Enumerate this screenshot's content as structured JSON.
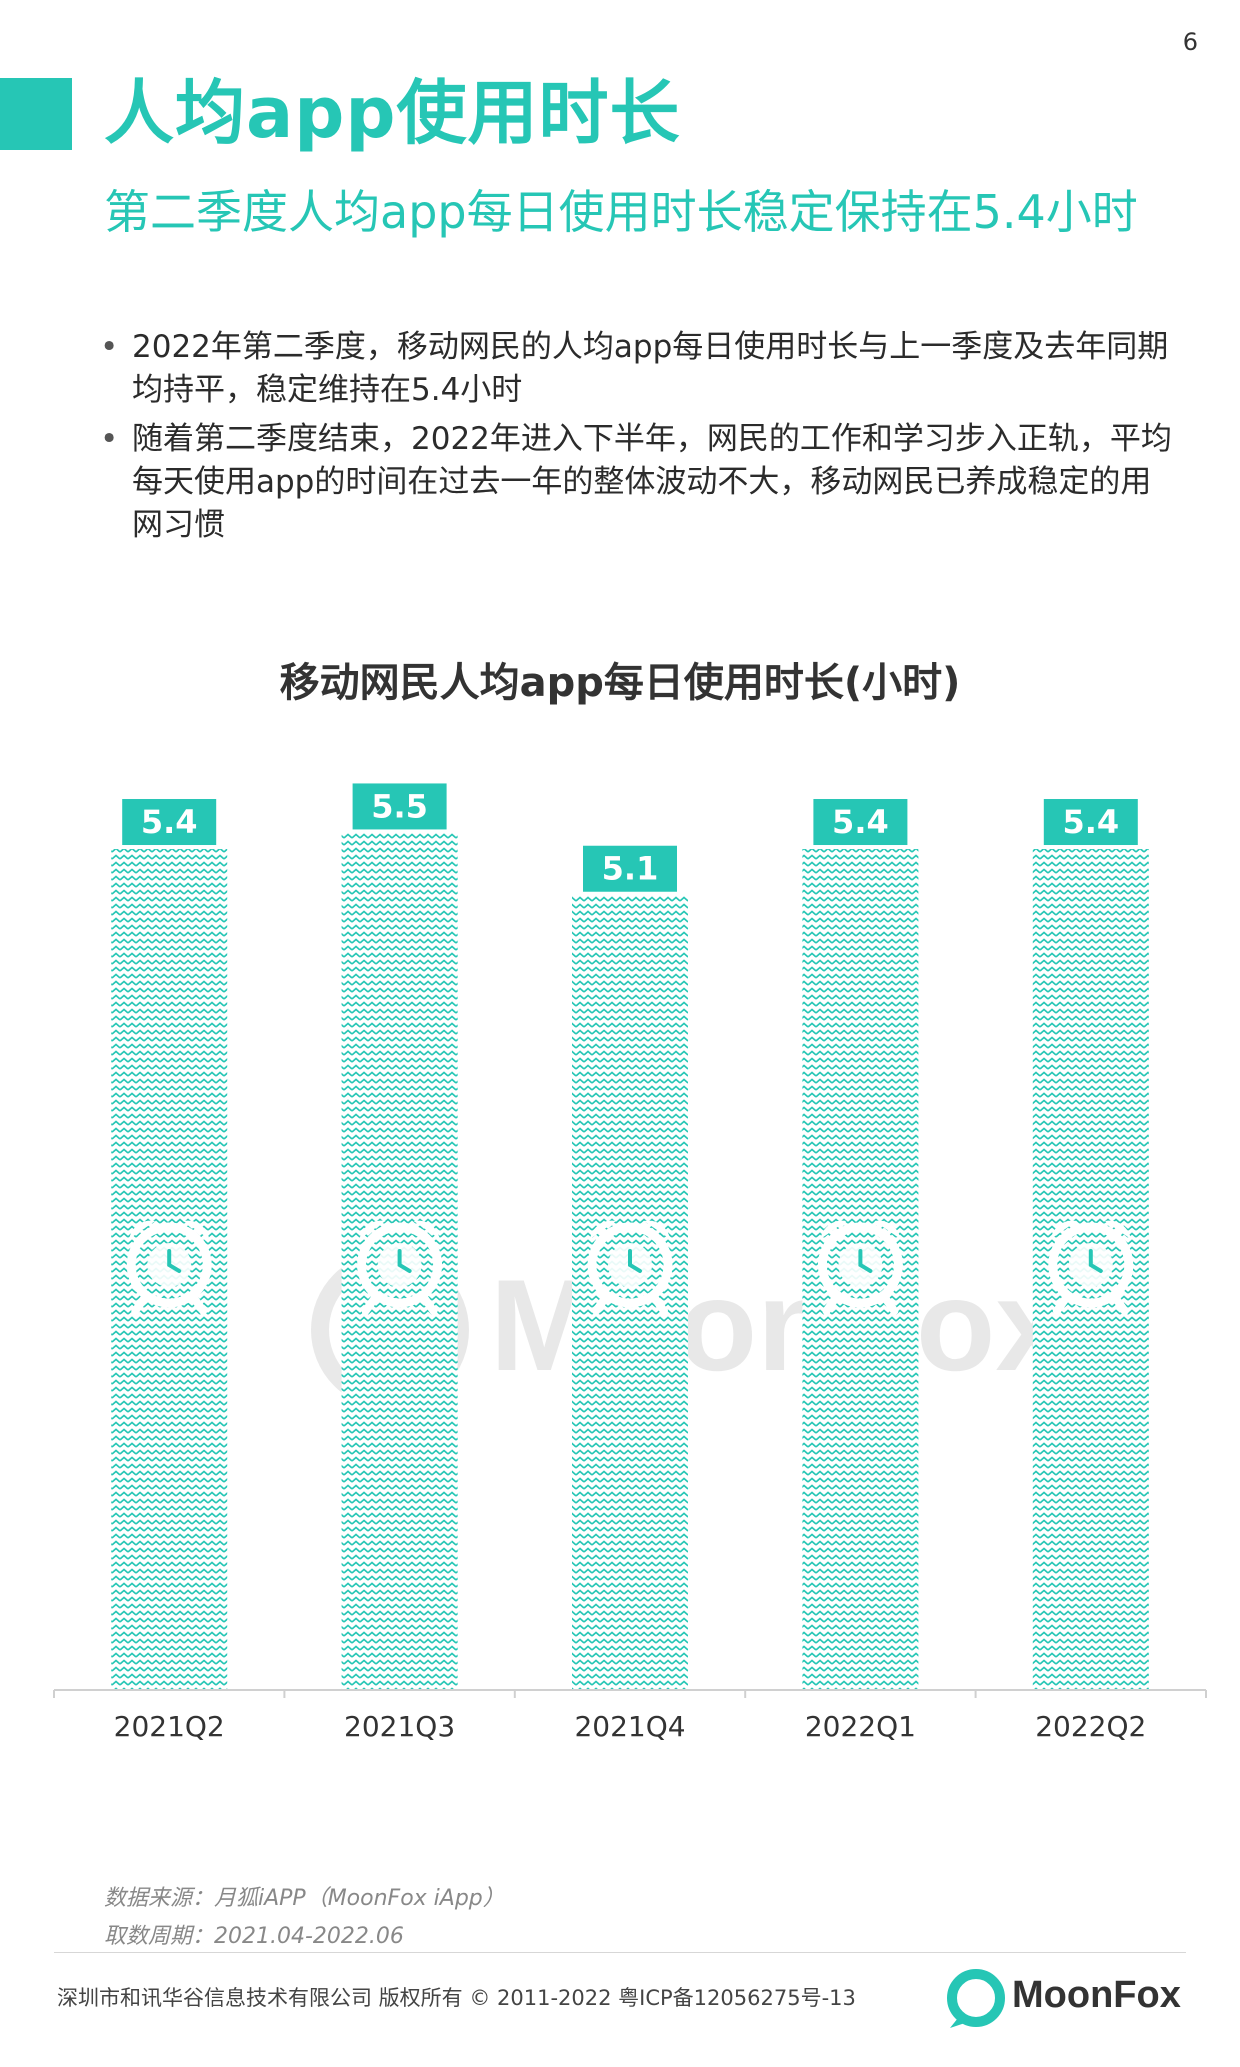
{
  "page_number": "6",
  "header": {
    "title": "人均app使用时长",
    "subtitle": "第二季度人均app每日使用时长稳定保持在5.4小时"
  },
  "bullets": [
    "2022年第二季度，移动网民的人均app每日使用时长与上一季度及去年同期均持平，稳定维持在5.4小时",
    "随着第二季度结束，2022年进入下半年，网民的工作和学习步入正轨，平均每天使用app的时间在过去一年的整体波动不大，移动网民已养成稳定的用网习惯"
  ],
  "chart_data": {
    "type": "bar",
    "title": "移动网民人均app每日使用时长(小时)",
    "categories": [
      "2021Q2",
      "2021Q3",
      "2021Q4",
      "2022Q1",
      "2022Q2"
    ],
    "values": [
      5.4,
      5.5,
      5.1,
      5.4,
      5.4
    ],
    "data_labels": [
      "5.4",
      "5.5",
      "5.1",
      "5.4",
      "5.4"
    ],
    "ylim": [
      0,
      6.1
    ],
    "grid": false,
    "legend": "none",
    "bar_color": "#26c6b5"
  },
  "watermark": "MoonFox",
  "source": {
    "data_source": "数据来源：月狐iAPP（MoonFox iApp）",
    "period": "取数周期：2021.04-2022.06"
  },
  "footer": {
    "copyright": "深圳市和讯华谷信息技术有限公司 版权所有 © 2011-2022 粤ICP备12056275号-13",
    "logo_text": "MoonFox"
  },
  "colors": {
    "accent": "#26c6b5"
  },
  "icons": [
    "alarm-clock-icon",
    "moonfox-logo-icon"
  ]
}
